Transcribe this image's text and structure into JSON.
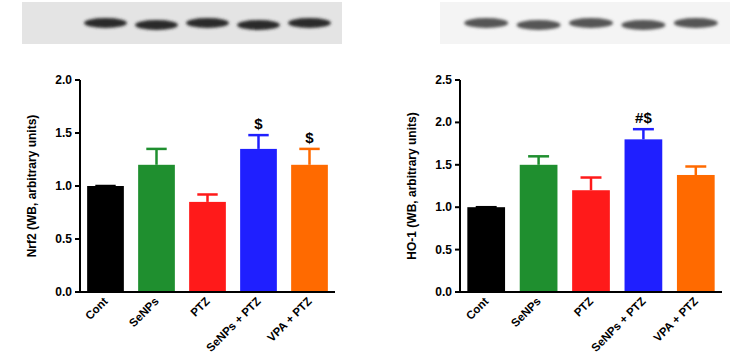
{
  "chart_data": [
    {
      "type": "bar",
      "y_label": "Nrf2 (WB, arbitrary units)",
      "categories": [
        "Cont",
        "SeNPs",
        "PTZ",
        "SeNPs + PTZ",
        "VPA + PTZ"
      ],
      "values": [
        1.0,
        1.2,
        0.85,
        1.35,
        1.2
      ],
      "errors": [
        0,
        0.15,
        0.07,
        0.13,
        0.15
      ],
      "colors": [
        "#000000",
        "#1f8f2f",
        "#ff1a1a",
        "#1f1fff",
        "#ff6a00"
      ],
      "ylim": [
        0,
        2
      ],
      "yticks": [
        {
          "value": 0,
          "label": "0.0"
        },
        0.5,
        {
          "value": 1,
          "label": "1.0"
        },
        1.5,
        {
          "value": 2,
          "label": "2.0"
        }
      ],
      "annotations": [
        {
          "category": "SeNPs + PTZ",
          "text": "$"
        },
        {
          "category": "VPA + PTZ",
          "text": "$"
        }
      ]
    },
    {
      "type": "bar",
      "y_label": "HO-1 (WB, arbitrary units)",
      "categories": [
        "Cont",
        "SeNPs",
        "PTZ",
        "SeNPs + PTZ",
        "VPA + PTZ"
      ],
      "values": [
        1.0,
        1.5,
        1.2,
        1.8,
        1.38
      ],
      "errors": [
        0,
        0.1,
        0.15,
        0.12,
        0.1
      ],
      "colors": [
        "#000000",
        "#1f8f2f",
        "#ff1a1a",
        "#1f1fff",
        "#ff6a00"
      ],
      "ylim": [
        0,
        2.5
      ],
      "yticks": [
        {
          "value": 0,
          "label": "0.0"
        },
        0.5,
        {
          "value": 1,
          "label": "1.0"
        },
        1.5,
        {
          "value": 2,
          "label": "2.0"
        },
        2.5
      ],
      "annotations": [
        {
          "category": "SeNPs + PTZ",
          "text": "#$"
        }
      ]
    }
  ]
}
